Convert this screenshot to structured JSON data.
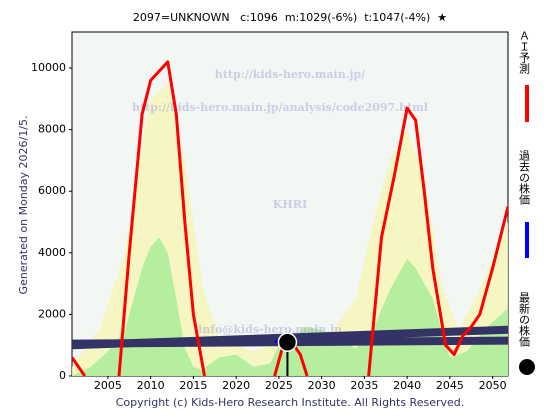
{
  "chart_data": {
    "type": "line",
    "title": "2097=UNKNOWN   c:1096  m:1029(-6%)  t:1047(-4%)  ★",
    "side_note": "Generated on Monday 2026/1/5.",
    "copyright": "Copyright (c) Kids-Hero Research Institute. All Rights Reserved.",
    "watermarks": [
      "http://kids-hero.main.jp/",
      "http://kids-hero.main.jp/analysis/code2097.html",
      "KHRI",
      "info@kids-hero.main.jp"
    ],
    "xlim": [
      2000.8,
      2051.8
    ],
    "ylim": [
      0,
      11170
    ],
    "xticks": [
      2005,
      2010,
      2015,
      2020,
      2025,
      2030,
      2035,
      2040,
      2045,
      2050
    ],
    "yticks": [
      0,
      2000,
      4000,
      6000,
      8000,
      10000
    ],
    "areas": [
      {
        "color": "#f6f6b8",
        "x": [
          2000.8,
          2004,
          2007,
          2009,
          2010,
          2012,
          2014,
          2016,
          2018,
          2022,
          2026,
          2030,
          2034,
          2036,
          2038,
          2040,
          2042,
          2044,
          2046,
          2048,
          2051.8
        ],
        "values": [
          300,
          1500,
          4000,
          7500,
          9000,
          9500,
          7000,
          3000,
          1200,
          800,
          1300,
          1000,
          2500,
          5000,
          7000,
          8000,
          6500,
          3000,
          1500,
          2500,
          5000
        ]
      },
      {
        "color": "#a8ec98",
        "x": [
          2000.8,
          2003,
          2005,
          2007,
          2009,
          2010,
          2011,
          2012,
          2013,
          2014,
          2015,
          2016,
          2018,
          2020,
          2022,
          2024,
          2025,
          2026,
          2028,
          2030,
          2032,
          2034,
          2036,
          2038,
          2040,
          2041,
          2043,
          2044,
          2045,
          2047,
          2049,
          2051.8
        ],
        "values": [
          0,
          300,
          800,
          1500,
          3500,
          4200,
          4500,
          4000,
          2500,
          900,
          300,
          200,
          600,
          700,
          300,
          400,
          1000,
          1000,
          1600,
          1500,
          1200,
          900,
          1500,
          2800,
          3800,
          3500,
          2500,
          1500,
          600,
          800,
          1500,
          2200
        ]
      }
    ],
    "bands": [
      {
        "color": "#333366",
        "x": [
          2000.8,
          2051.8
        ],
        "values": [
          1000,
          1500
        ]
      },
      {
        "color": "#333366",
        "x": [
          2000.8,
          2051.8
        ],
        "values": [
          1050,
          1150
        ]
      }
    ],
    "series": [
      {
        "name": "ＡＩ予測",
        "color": "#ff0000",
        "style": "line",
        "x": [
          2000.8,
          2002.3,
          2004,
          2006.3,
          2007.5,
          2009,
          2010,
          2011,
          2012,
          2013,
          2014,
          2015,
          2016.3,
          2020,
          2024.5,
          2025.5,
          2026.5,
          2027.5,
          2028.3,
          2032,
          2035.5,
          2037,
          2038.5,
          2040,
          2041,
          2042,
          2043,
          2044.5,
          2045.5,
          2046.5,
          2047.5,
          2048.5,
          2050,
          2051.8
        ],
        "values": [
          600,
          0,
          null,
          0,
          4000,
          8500,
          9600,
          9900,
          10200,
          8500,
          5000,
          2000,
          0,
          null,
          0,
          1000,
          1100,
          700,
          0,
          null,
          0,
          4500,
          6500,
          8700,
          8300,
          6000,
          3500,
          1000,
          700,
          1300,
          1600,
          2000,
          3500,
          5500
        ]
      },
      {
        "name": "過去の株価",
        "color": "#0000ff",
        "style": "line",
        "x": [
          2024.5,
          2025.2,
          2026
        ],
        "values": [
          1100,
          1150,
          1096
        ]
      },
      {
        "name": "最新の株価",
        "color": "#000000",
        "style": "marker",
        "x": [
          2026
        ],
        "values": [
          1096
        ]
      }
    ]
  }
}
